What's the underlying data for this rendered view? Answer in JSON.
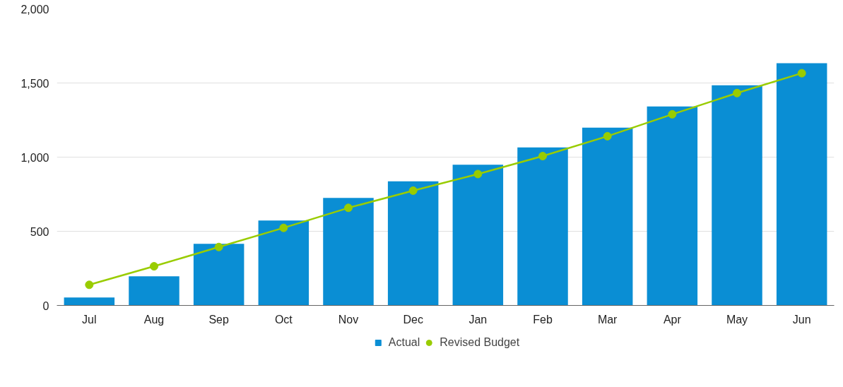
{
  "chart_data": {
    "type": "bar",
    "categories": [
      "Jul",
      "Aug",
      "Sep",
      "Oct",
      "Nov",
      "Dec",
      "Jan",
      "Feb",
      "Mar",
      "Apr",
      "May",
      "Jun"
    ],
    "series": [
      {
        "name": "Actual",
        "color": "#0a8ed4",
        "values": [
          54,
          197,
          416,
          573,
          725,
          837,
          949,
          1065,
          1199,
          1342,
          1485,
          1633
        ]
      },
      {
        "name": "Revised Budget",
        "type": "line",
        "color": "#99cc00",
        "marker": "circle",
        "values": [
          139,
          264,
          394,
          523,
          658,
          774,
          886,
          1007,
          1141,
          1289,
          1432,
          1566
        ]
      }
    ],
    "ylim": [
      0,
      2000
    ],
    "yticks": [
      0,
      500,
      {
        "value": 1000,
        "label": "1,000"
      },
      {
        "value": 1500,
        "label": "1,500"
      },
      {
        "value": 2000,
        "label": "2,000"
      }
    ],
    "grid": "y",
    "legend": "bottom"
  }
}
